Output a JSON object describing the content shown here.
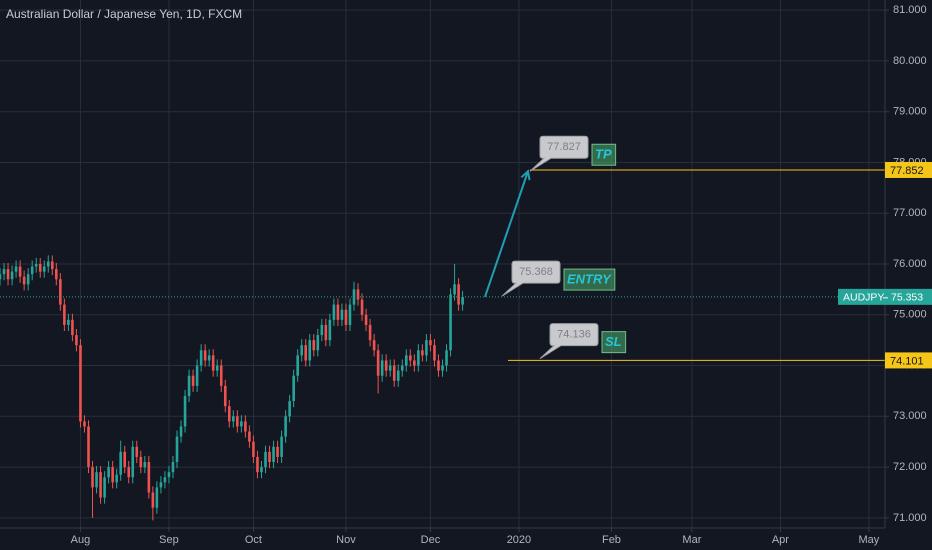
{
  "chart_data": {
    "type": "candlestick",
    "title": "Australian Dollar / Japanese Yen, 1D, FXCM",
    "symbol": "AUDJPY",
    "x": [
      -20,
      -19,
      -18,
      -17,
      -16,
      -15,
      -14,
      -13,
      -12,
      -11,
      -10,
      -9,
      -8,
      -7,
      -6,
      -5,
      -4,
      -3,
      -2,
      -1,
      0,
      1,
      2,
      3,
      4,
      5,
      6,
      7,
      8,
      9,
      10,
      11,
      12,
      13,
      14,
      15,
      16,
      17,
      18,
      19,
      20,
      21,
      22,
      23,
      24,
      25,
      26,
      27,
      28,
      29,
      30,
      31,
      32,
      33,
      34,
      35,
      36,
      37,
      38,
      39,
      40,
      41,
      42,
      43,
      44,
      45,
      46,
      47,
      48,
      49,
      50,
      51,
      52,
      53,
      54,
      55,
      56,
      57,
      58,
      59,
      60,
      61,
      62,
      63,
      64,
      65,
      66,
      67,
      68,
      69,
      70,
      71,
      72,
      73,
      74,
      75,
      76,
      77,
      78,
      79,
      80,
      81,
      82,
      83,
      84,
      85,
      86,
      87,
      88,
      89,
      90,
      91,
      92,
      93,
      94,
      95
    ],
    "open": [
      75.7,
      75.8,
      75.9,
      75.7,
      75.85,
      75.95,
      75.75,
      75.6,
      75.8,
      75.95,
      76.0,
      75.85,
      75.95,
      76.05,
      75.9,
      75.7,
      75.2,
      74.8,
      74.9,
      74.6,
      74.4,
      72.9,
      72.8,
      72.0,
      71.6,
      71.9,
      71.4,
      71.8,
      72.0,
      71.7,
      71.85,
      72.3,
      72.0,
      71.8,
      72.4,
      72.2,
      72.0,
      72.1,
      71.5,
      71.2,
      71.6,
      71.7,
      71.8,
      71.9,
      72.1,
      72.6,
      72.8,
      73.4,
      73.8,
      73.6,
      74.0,
      74.3,
      74.1,
      74.2,
      73.9,
      74.0,
      73.6,
      73.2,
      72.9,
      73.0,
      72.8,
      72.9,
      72.7,
      72.5,
      72.2,
      71.9,
      72.0,
      72.3,
      72.1,
      72.4,
      72.2,
      72.6,
      73.0,
      73.3,
      73.8,
      74.2,
      74.4,
      74.1,
      74.5,
      74.3,
      74.6,
      74.8,
      74.5,
      74.9,
      75.2,
      74.9,
      75.1,
      74.8,
      75.2,
      75.5,
      75.3,
      75.0,
      74.8,
      74.5,
      74.3,
      73.8,
      74.1,
      73.9,
      74.0,
      73.7,
      73.9,
      74.0,
      74.2,
      74.1,
      74.0,
      74.3,
      74.2,
      74.5,
      74.4,
      74.1,
      73.9,
      74.0,
      74.3,
      75.4,
      75.6,
      75.2
    ],
    "high": [
      75.92,
      76.02,
      76.02,
      75.97,
      76.07,
      76.07,
      75.87,
      75.92,
      76.07,
      76.12,
      76.12,
      76.07,
      76.17,
      76.17,
      76.02,
      75.82,
      75.32,
      75.02,
      75.02,
      74.72,
      74.52,
      73.02,
      72.92,
      72.12,
      72.02,
      72.02,
      71.92,
      72.12,
      72.12,
      71.97,
      72.52,
      72.42,
      72.12,
      72.52,
      72.52,
      72.32,
      72.22,
      72.22,
      71.62,
      71.72,
      71.82,
      71.92,
      72.02,
      72.22,
      72.72,
      72.92,
      73.52,
      73.92,
      73.92,
      74.12,
      74.42,
      74.42,
      74.32,
      74.32,
      74.12,
      74.12,
      73.72,
      73.32,
      73.12,
      73.12,
      73.02,
      73.02,
      72.82,
      72.62,
      72.32,
      72.12,
      72.42,
      72.42,
      72.52,
      72.52,
      72.72,
      73.12,
      73.42,
      73.92,
      74.32,
      74.52,
      74.52,
      74.62,
      74.62,
      74.72,
      74.92,
      74.92,
      75.02,
      75.32,
      75.32,
      75.22,
      75.22,
      75.32,
      75.65,
      75.62,
      75.42,
      75.12,
      74.92,
      74.62,
      74.42,
      74.22,
      74.22,
      74.12,
      74.12,
      74.02,
      74.12,
      74.32,
      74.32,
      74.22,
      74.42,
      74.42,
      74.62,
      74.62,
      74.52,
      74.22,
      74.12,
      74.42,
      75.52,
      76.0,
      75.72,
      75.47
    ],
    "low": [
      75.58,
      75.68,
      75.58,
      75.58,
      75.73,
      75.63,
      75.48,
      75.48,
      75.68,
      75.83,
      75.73,
      75.73,
      75.83,
      75.78,
      75.58,
      75.08,
      74.68,
      74.68,
      74.48,
      74.28,
      72.78,
      72.68,
      71.88,
      71.0,
      71.48,
      71.28,
      71.28,
      71.68,
      71.58,
      71.58,
      71.73,
      71.88,
      71.68,
      71.68,
      72.08,
      71.88,
      71.88,
      71.38,
      70.95,
      71.08,
      71.48,
      71.58,
      71.68,
      71.78,
      71.98,
      72.48,
      72.68,
      73.28,
      73.48,
      73.48,
      73.88,
      73.98,
      73.98,
      73.78,
      73.78,
      73.48,
      73.08,
      72.78,
      72.78,
      72.68,
      72.68,
      72.58,
      72.38,
      72.08,
      71.78,
      71.78,
      71.88,
      71.98,
      71.98,
      72.08,
      72.08,
      72.48,
      72.88,
      73.18,
      73.68,
      74.08,
      73.98,
      73.98,
      74.18,
      74.18,
      74.48,
      74.38,
      74.38,
      74.78,
      74.78,
      74.78,
      74.68,
      74.68,
      75.08,
      75.18,
      74.88,
      74.68,
      74.38,
      74.18,
      73.45,
      73.68,
      73.78,
      73.78,
      73.58,
      73.58,
      73.78,
      73.88,
      73.98,
      73.88,
      73.88,
      74.08,
      74.08,
      74.28,
      73.98,
      73.78,
      73.78,
      73.88,
      74.18,
      75.28,
      75.08,
      75.08
    ],
    "close": [
      75.8,
      75.9,
      75.7,
      75.85,
      75.95,
      75.75,
      75.6,
      75.8,
      75.95,
      76.0,
      75.85,
      75.95,
      76.05,
      75.9,
      75.7,
      75.2,
      74.8,
      74.9,
      74.6,
      74.4,
      72.9,
      72.8,
      72.0,
      71.6,
      71.9,
      71.4,
      71.8,
      72.0,
      71.7,
      71.85,
      72.3,
      72.0,
      71.8,
      72.4,
      72.2,
      72.0,
      72.1,
      71.5,
      71.2,
      71.6,
      71.7,
      71.8,
      71.9,
      72.1,
      72.6,
      72.8,
      73.4,
      73.8,
      73.6,
      74.0,
      74.3,
      74.1,
      74.2,
      73.9,
      74.0,
      73.6,
      73.2,
      72.9,
      73.0,
      72.8,
      72.9,
      72.7,
      72.5,
      72.2,
      71.9,
      72.0,
      72.3,
      72.1,
      72.4,
      72.2,
      72.6,
      73.0,
      73.3,
      73.8,
      74.2,
      74.4,
      74.1,
      74.5,
      74.3,
      74.6,
      74.8,
      74.5,
      74.9,
      75.2,
      74.9,
      75.1,
      74.8,
      75.2,
      75.5,
      75.3,
      75.0,
      74.8,
      74.5,
      74.3,
      73.8,
      74.1,
      73.9,
      74.0,
      73.7,
      73.9,
      74.0,
      74.2,
      74.1,
      74.0,
      74.3,
      74.2,
      74.5,
      74.4,
      74.1,
      73.9,
      74.0,
      74.3,
      75.4,
      75.6,
      75.2,
      75.35
    ],
    "up_color": "#26a69a",
    "down_color": "#ef5350",
    "xlim": [
      -20,
      200
    ],
    "xticks": [
      {
        "value": 0,
        "label": "Aug"
      },
      {
        "value": 22,
        "label": "Sep"
      },
      {
        "value": 43,
        "label": "Oct"
      },
      {
        "value": 66,
        "label": "Nov"
      },
      {
        "value": 87,
        "label": "Dec"
      },
      {
        "value": 109,
        "label": "2020"
      },
      {
        "value": 132,
        "label": "Feb"
      },
      {
        "value": 152,
        "label": "Mar"
      },
      {
        "value": 174,
        "label": "Apr"
      },
      {
        "value": 196,
        "label": "May"
      }
    ],
    "ylim": [
      70.8,
      81.2
    ],
    "yticks": [
      {
        "value": 71,
        "label": "71.000"
      },
      {
        "value": 72,
        "label": "72.000"
      },
      {
        "value": 73,
        "label": "73.000"
      },
      {
        "value": 74,
        "label": "74.000"
      },
      {
        "value": 75,
        "label": "75.000"
      },
      {
        "value": 76,
        "label": "76.000"
      },
      {
        "value": 77,
        "label": "77.000"
      },
      {
        "value": 78,
        "label": "78.000"
      },
      {
        "value": 79,
        "label": "79.000"
      },
      {
        "value": 80,
        "label": "80.000"
      },
      {
        "value": 81,
        "label": "81.000"
      }
    ],
    "grid": true,
    "last_price": 75.353,
    "last_color": "#26a69a",
    "levels": [
      {
        "value": 77.852,
        "color": "#f5c518"
      },
      {
        "value": 74.101,
        "color": "#f5c518"
      }
    ],
    "annotations": [
      {
        "price": 77.827,
        "text": "TP"
      },
      {
        "price": 75.368,
        "text": "ENTRY"
      },
      {
        "price": 74.136,
        "text": "SL"
      }
    ]
  }
}
